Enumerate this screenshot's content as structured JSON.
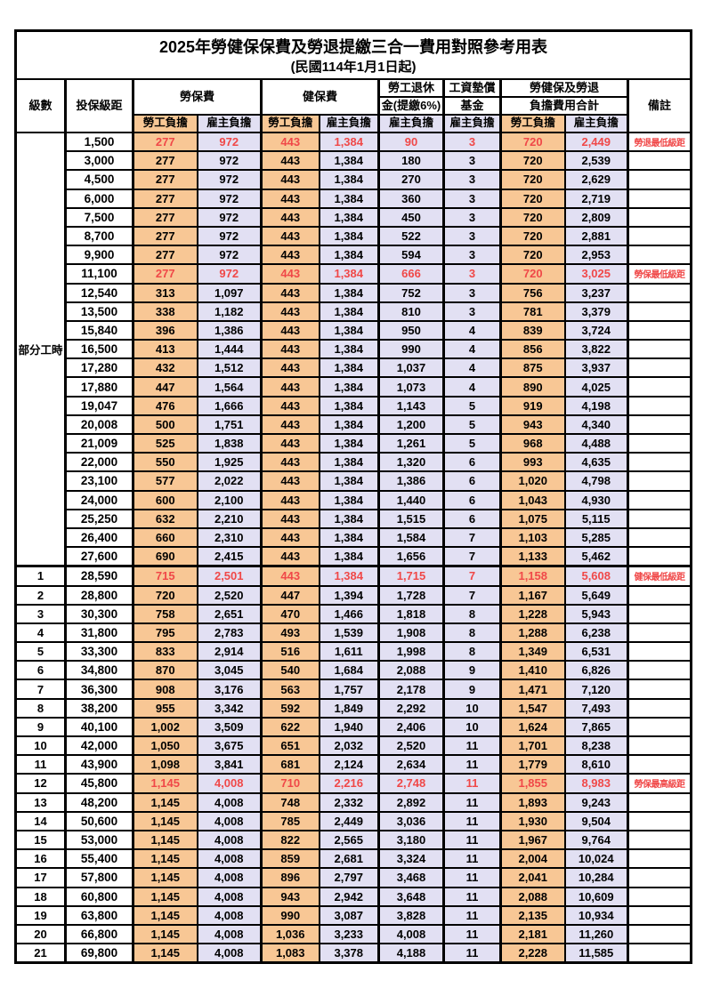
{
  "title": "2025年勞健保保費及勞退提繳三合一費用對照參考用表",
  "subtitle": "(民國114年1月1日起)",
  "colors": {
    "employee_share_bg": "#F8C795",
    "employer_share_bg": "#E2E0F3",
    "highlight_text": "#F04848",
    "border": "#000000"
  },
  "header": {
    "level": "級數",
    "bracket": "投保級距",
    "labor_insurance": "勞保費",
    "health_insurance": "健保費",
    "pension_line1": "勞工退休",
    "pension_line2": "金(提繳6%)",
    "wage_fund_line1": "工資墊償",
    "wage_fund_line2": "基金",
    "total_line1": "勞健保及勞退",
    "total_line2": "負擔費用合計",
    "remark": "備註",
    "employee": "勞工負擔",
    "employer": "雇主負擔"
  },
  "part_time_label": "部分工時",
  "part_time_rowspan": 23,
  "rows": [
    {
      "level": null,
      "bracket": "1,500",
      "values": [
        "277",
        "972",
        "443",
        "1,384",
        "90",
        "3",
        "720",
        "2,449"
      ],
      "remark": "勞退最低級距",
      "red": true,
      "big": false
    },
    {
      "level": null,
      "bracket": "3,000",
      "values": [
        "277",
        "972",
        "443",
        "1,384",
        "180",
        "3",
        "720",
        "2,539"
      ],
      "remark": "",
      "red": false,
      "big": false
    },
    {
      "level": null,
      "bracket": "4,500",
      "values": [
        "277",
        "972",
        "443",
        "1,384",
        "270",
        "3",
        "720",
        "2,629"
      ],
      "remark": "",
      "red": false,
      "big": false
    },
    {
      "level": null,
      "bracket": "6,000",
      "values": [
        "277",
        "972",
        "443",
        "1,384",
        "360",
        "3",
        "720",
        "2,719"
      ],
      "remark": "",
      "red": false,
      "big": false
    },
    {
      "level": null,
      "bracket": "7,500",
      "values": [
        "277",
        "972",
        "443",
        "1,384",
        "450",
        "3",
        "720",
        "2,809"
      ],
      "remark": "",
      "red": false,
      "big": false
    },
    {
      "level": null,
      "bracket": "8,700",
      "values": [
        "277",
        "972",
        "443",
        "1,384",
        "522",
        "3",
        "720",
        "2,881"
      ],
      "remark": "",
      "red": false,
      "big": false
    },
    {
      "level": null,
      "bracket": "9,900",
      "values": [
        "277",
        "972",
        "443",
        "1,384",
        "594",
        "3",
        "720",
        "2,953"
      ],
      "remark": "",
      "red": false,
      "big": false
    },
    {
      "level": null,
      "bracket": "11,100",
      "values": [
        "277",
        "972",
        "443",
        "1,384",
        "666",
        "3",
        "720",
        "3,025"
      ],
      "remark": "勞保最低級距",
      "red": true,
      "big": false
    },
    {
      "level": null,
      "bracket": "12,540",
      "values": [
        "313",
        "1,097",
        "443",
        "1,384",
        "752",
        "3",
        "756",
        "3,237"
      ],
      "remark": "",
      "red": false,
      "big": false
    },
    {
      "level": null,
      "bracket": "13,500",
      "values": [
        "338",
        "1,182",
        "443",
        "1,384",
        "810",
        "3",
        "781",
        "3,379"
      ],
      "remark": "",
      "red": false,
      "big": false
    },
    {
      "level": null,
      "bracket": "15,840",
      "values": [
        "396",
        "1,386",
        "443",
        "1,384",
        "950",
        "4",
        "839",
        "3,724"
      ],
      "remark": "",
      "red": false,
      "big": false
    },
    {
      "level": null,
      "bracket": "16,500",
      "values": [
        "413",
        "1,444",
        "443",
        "1,384",
        "990",
        "4",
        "856",
        "3,822"
      ],
      "remark": "",
      "red": false,
      "big": false
    },
    {
      "level": null,
      "bracket": "17,280",
      "values": [
        "432",
        "1,512",
        "443",
        "1,384",
        "1,037",
        "4",
        "875",
        "3,937"
      ],
      "remark": "",
      "red": false,
      "big": false
    },
    {
      "level": null,
      "bracket": "17,880",
      "values": [
        "447",
        "1,564",
        "443",
        "1,384",
        "1,073",
        "4",
        "890",
        "4,025"
      ],
      "remark": "",
      "red": false,
      "big": false
    },
    {
      "level": null,
      "bracket": "19,047",
      "values": [
        "476",
        "1,666",
        "443",
        "1,384",
        "1,143",
        "5",
        "919",
        "4,198"
      ],
      "remark": "",
      "red": false,
      "big": false
    },
    {
      "level": null,
      "bracket": "20,008",
      "values": [
        "500",
        "1,751",
        "443",
        "1,384",
        "1,200",
        "5",
        "943",
        "4,340"
      ],
      "remark": "",
      "red": false,
      "big": false
    },
    {
      "level": null,
      "bracket": "21,009",
      "values": [
        "525",
        "1,838",
        "443",
        "1,384",
        "1,261",
        "5",
        "968",
        "4,488"
      ],
      "remark": "",
      "red": false,
      "big": false
    },
    {
      "level": null,
      "bracket": "22,000",
      "values": [
        "550",
        "1,925",
        "443",
        "1,384",
        "1,320",
        "6",
        "993",
        "4,635"
      ],
      "remark": "",
      "red": false,
      "big": false
    },
    {
      "level": null,
      "bracket": "23,100",
      "values": [
        "577",
        "2,022",
        "443",
        "1,384",
        "1,386",
        "6",
        "1,020",
        "4,798"
      ],
      "remark": "",
      "red": false,
      "big": false
    },
    {
      "level": null,
      "bracket": "24,000",
      "values": [
        "600",
        "2,100",
        "443",
        "1,384",
        "1,440",
        "6",
        "1,043",
        "4,930"
      ],
      "remark": "",
      "red": false,
      "big": false
    },
    {
      "level": null,
      "bracket": "25,250",
      "values": [
        "632",
        "2,210",
        "443",
        "1,384",
        "1,515",
        "6",
        "1,075",
        "5,115"
      ],
      "remark": "",
      "red": false,
      "big": false
    },
    {
      "level": null,
      "bracket": "26,400",
      "values": [
        "660",
        "2,310",
        "443",
        "1,384",
        "1,584",
        "7",
        "1,103",
        "5,285"
      ],
      "remark": "",
      "red": false,
      "big": false
    },
    {
      "level": null,
      "bracket": "27,600",
      "values": [
        "690",
        "2,415",
        "443",
        "1,384",
        "1,656",
        "7",
        "1,133",
        "5,462"
      ],
      "remark": "",
      "red": false,
      "big": false
    },
    {
      "level": "1",
      "bracket": "28,590",
      "values": [
        "715",
        "2,501",
        "443",
        "1,384",
        "1,715",
        "7",
        "1,158",
        "5,608"
      ],
      "remark": "健保最低級距",
      "red": true,
      "big": true
    },
    {
      "level": "2",
      "bracket": "28,800",
      "values": [
        "720",
        "2,520",
        "447",
        "1,394",
        "1,728",
        "7",
        "1,167",
        "5,649"
      ],
      "remark": "",
      "red": false,
      "big": false
    },
    {
      "level": "3",
      "bracket": "30,300",
      "values": [
        "758",
        "2,651",
        "470",
        "1,466",
        "1,818",
        "8",
        "1,228",
        "5,943"
      ],
      "remark": "",
      "red": false,
      "big": false
    },
    {
      "level": "4",
      "bracket": "31,800",
      "values": [
        "795",
        "2,783",
        "493",
        "1,539",
        "1,908",
        "8",
        "1,288",
        "6,238"
      ],
      "remark": "",
      "red": false,
      "big": false
    },
    {
      "level": "5",
      "bracket": "33,300",
      "values": [
        "833",
        "2,914",
        "516",
        "1,611",
        "1,998",
        "8",
        "1,349",
        "6,531"
      ],
      "remark": "",
      "red": false,
      "big": false
    },
    {
      "level": "6",
      "bracket": "34,800",
      "values": [
        "870",
        "3,045",
        "540",
        "1,684",
        "2,088",
        "9",
        "1,410",
        "6,826"
      ],
      "remark": "",
      "red": false,
      "big": false
    },
    {
      "level": "7",
      "bracket": "36,300",
      "values": [
        "908",
        "3,176",
        "563",
        "1,757",
        "2,178",
        "9",
        "1,471",
        "7,120"
      ],
      "remark": "",
      "red": false,
      "big": false
    },
    {
      "level": "8",
      "bracket": "38,200",
      "values": [
        "955",
        "3,342",
        "592",
        "1,849",
        "2,292",
        "10",
        "1,547",
        "7,493"
      ],
      "remark": "",
      "red": false,
      "big": false
    },
    {
      "level": "9",
      "bracket": "40,100",
      "values": [
        "1,002",
        "3,509",
        "622",
        "1,940",
        "2,406",
        "10",
        "1,624",
        "7,865"
      ],
      "remark": "",
      "red": false,
      "big": false
    },
    {
      "level": "10",
      "bracket": "42,000",
      "values": [
        "1,050",
        "3,675",
        "651",
        "2,032",
        "2,520",
        "11",
        "1,701",
        "8,238"
      ],
      "remark": "",
      "red": false,
      "big": false
    },
    {
      "level": "11",
      "bracket": "43,900",
      "values": [
        "1,098",
        "3,841",
        "681",
        "2,124",
        "2,634",
        "11",
        "1,779",
        "8,610"
      ],
      "remark": "",
      "red": false,
      "big": false
    },
    {
      "level": "12",
      "bracket": "45,800",
      "values": [
        "1,145",
        "4,008",
        "710",
        "2,216",
        "2,748",
        "11",
        "1,855",
        "8,983"
      ],
      "remark": "勞保最高級距",
      "red": true,
      "big": true
    },
    {
      "level": "13",
      "bracket": "48,200",
      "values": [
        "1,145",
        "4,008",
        "748",
        "2,332",
        "2,892",
        "11",
        "1,893",
        "9,243"
      ],
      "remark": "",
      "red": false,
      "big": false
    },
    {
      "level": "14",
      "bracket": "50,600",
      "values": [
        "1,145",
        "4,008",
        "785",
        "2,449",
        "3,036",
        "11",
        "1,930",
        "9,504"
      ],
      "remark": "",
      "red": false,
      "big": false
    },
    {
      "level": "15",
      "bracket": "53,000",
      "values": [
        "1,145",
        "4,008",
        "822",
        "2,565",
        "3,180",
        "11",
        "1,967",
        "9,764"
      ],
      "remark": "",
      "red": false,
      "big": false
    },
    {
      "level": "16",
      "bracket": "55,400",
      "values": [
        "1,145",
        "4,008",
        "859",
        "2,681",
        "3,324",
        "11",
        "2,004",
        "10,024"
      ],
      "remark": "",
      "red": false,
      "big": false
    },
    {
      "level": "17",
      "bracket": "57,800",
      "values": [
        "1,145",
        "4,008",
        "896",
        "2,797",
        "3,468",
        "11",
        "2,041",
        "10,284"
      ],
      "remark": "",
      "red": false,
      "big": false
    },
    {
      "level": "18",
      "bracket": "60,800",
      "values": [
        "1,145",
        "4,008",
        "943",
        "2,942",
        "3,648",
        "11",
        "2,088",
        "10,609"
      ],
      "remark": "",
      "red": false,
      "big": false
    },
    {
      "level": "19",
      "bracket": "63,800",
      "values": [
        "1,145",
        "4,008",
        "990",
        "3,087",
        "3,828",
        "11",
        "2,135",
        "10,934"
      ],
      "remark": "",
      "red": false,
      "big": false
    },
    {
      "level": "20",
      "bracket": "66,800",
      "values": [
        "1,145",
        "4,008",
        "1,036",
        "3,233",
        "4,008",
        "11",
        "2,181",
        "11,260"
      ],
      "remark": "",
      "red": false,
      "big": false
    },
    {
      "level": "21",
      "bracket": "69,800",
      "values": [
        "1,145",
        "4,008",
        "1,083",
        "3,378",
        "4,188",
        "11",
        "2,228",
        "11,585"
      ],
      "remark": "",
      "red": false,
      "big": false
    }
  ]
}
